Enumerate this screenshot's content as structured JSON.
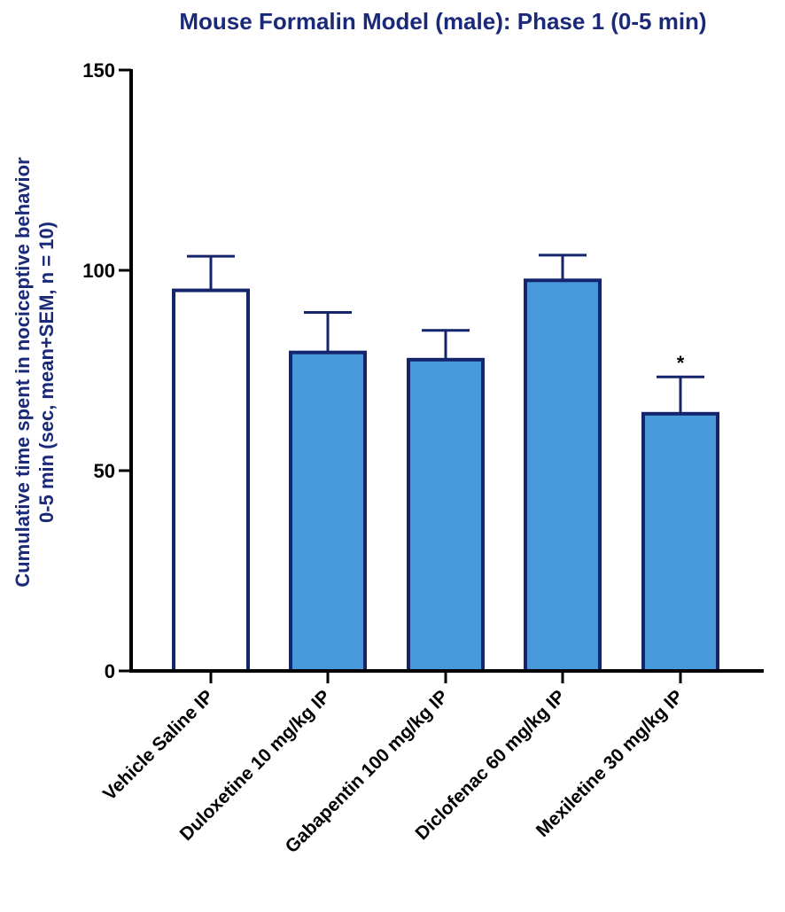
{
  "chart_data": {
    "type": "bar",
    "title": "Mouse Formalin Model (male): Phase 1 (0-5 min)",
    "ylabel_line1": "Cumulative time spent in nociceptive behavior",
    "ylabel_line2": "0-5 min (sec, mean+SEM, n = 10)",
    "xlabel": "",
    "ylim": [
      0,
      150
    ],
    "yticks": [
      0,
      50,
      100,
      150
    ],
    "yticklabels": [
      "0",
      "50",
      "100",
      "150"
    ],
    "grid": false,
    "categories": [
      "Vehicle Saline IP",
      "Duloxetine 10 mg/kg IP",
      "Gabapentin 100 mg/kg IP",
      "Diclofenac 60 mg/kg IP",
      "Mexiletine 30 mg/kg IP"
    ],
    "values": [
      95,
      79.5,
      77.7,
      97.5,
      64.2
    ],
    "sem": [
      8.5,
      10,
      7.3,
      6.3,
      9.2
    ],
    "fills": [
      "#ffffff",
      "#4799d9",
      "#4799d9",
      "#4799d9",
      "#4799d9"
    ],
    "annotations": [
      "",
      "",
      "",
      "",
      "*"
    ],
    "colors": {
      "title": "#1b2a78",
      "ylabel": "#1b2a78",
      "bar_edge": "#14256e",
      "axis": "#000000"
    }
  }
}
